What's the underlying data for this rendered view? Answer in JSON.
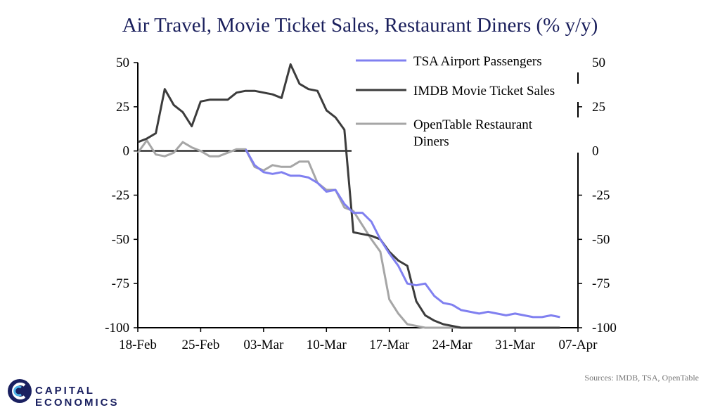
{
  "header": {
    "title": "Air Travel, Movie Ticket Sales, Restaurant Diners (% y/y)"
  },
  "footer": {
    "source": "Sources: IMDB, TSA, OpenTable",
    "brand": "CAPITAL ECONOMICS"
  },
  "colors": {
    "tsa": "#8080f0",
    "imdb": "#3c3c3c",
    "opentable": "#a6a6a6",
    "title": "#1a1f5c"
  },
  "chart_data": {
    "type": "line",
    "title": "Air Travel, Movie Ticket Sales, Restaurant Diners (% y/y)",
    "xlabel": "",
    "ylabel": "",
    "ylim": [
      -100,
      50
    ],
    "xlim_days": [
      0,
      48
    ],
    "yticks": [
      50,
      25,
      0,
      -25,
      -50,
      -75,
      -100
    ],
    "left_tick_labels": [
      "50",
      "25",
      "0",
      "-25",
      "-50",
      "-75",
      "-100"
    ],
    "right_tick_labels": [
      "50",
      "25",
      "0",
      "-25",
      "-50",
      "-75",
      "-100"
    ],
    "x_ticks": [
      {
        "day": 0,
        "label": "18-Feb"
      },
      {
        "day": 7,
        "label": "25-Feb"
      },
      {
        "day": 14,
        "label": "03-Mar"
      },
      {
        "day": 21,
        "label": "10-Mar"
      },
      {
        "day": 28,
        "label": "17-Mar"
      },
      {
        "day": 35,
        "label": "24-Mar"
      },
      {
        "day": 42,
        "label": "31-Mar"
      },
      {
        "day": 49,
        "label": "07-Apr"
      }
    ],
    "series": [
      {
        "name": "TSA Airport Passengers",
        "legend_lines": [
          "TSA Airport Passengers"
        ],
        "color_key": "tsa",
        "x": [
          12,
          13,
          14,
          15,
          16,
          17,
          18,
          19,
          20,
          21,
          22,
          23,
          24,
          25,
          26,
          27,
          28,
          29,
          30,
          31,
          32,
          33,
          34,
          35,
          36,
          37,
          38,
          39,
          40,
          41,
          42,
          43,
          44,
          45,
          46,
          47
        ],
        "values": [
          1,
          -8,
          -12,
          -13,
          -12,
          -14,
          -14,
          -15,
          -18,
          -23,
          -22,
          -30,
          -35,
          -35,
          -40,
          -50,
          -58,
          -65,
          -75,
          -76,
          -75,
          -82,
          -86,
          -87,
          -90,
          -91,
          -92,
          -91,
          -92,
          -93,
          -92,
          -93,
          -94,
          -94,
          -93,
          -94
        ]
      },
      {
        "name": "IMDB Movie Ticket Sales",
        "legend_lines": [
          "IMDB Movie Ticket Sales"
        ],
        "color_key": "imdb",
        "x": [
          0,
          1,
          2,
          3,
          4,
          5,
          6,
          7,
          8,
          9,
          10,
          11,
          12,
          13,
          14,
          15,
          16,
          17,
          18,
          19,
          20,
          21,
          22,
          23,
          24,
          25,
          26,
          27,
          28,
          29,
          30,
          31,
          32,
          33,
          34,
          35,
          36,
          37,
          38,
          39,
          40,
          41,
          42,
          43,
          44,
          45,
          46,
          47
        ],
        "values": [
          5,
          7,
          10,
          35,
          26,
          22,
          14,
          28,
          29,
          29,
          29,
          33,
          34,
          34,
          33,
          32,
          30,
          49,
          38,
          35,
          34,
          23,
          19,
          12,
          -46,
          -47,
          -48,
          -50,
          -57,
          -62,
          -65,
          -85,
          -93,
          -96,
          -98,
          -99,
          -100,
          -100,
          -100,
          -100,
          -100,
          -100,
          -100,
          -100,
          -100,
          -100,
          -100,
          -100
        ]
      },
      {
        "name": "OpenTable Restaurant Diners",
        "legend_lines": [
          "OpenTable Restaurant",
          "Diners"
        ],
        "color_key": "opentable",
        "x": [
          0,
          1,
          2,
          3,
          4,
          5,
          6,
          7,
          8,
          9,
          10,
          11,
          12,
          13,
          14,
          15,
          16,
          17,
          18,
          19,
          20,
          21,
          22,
          23,
          24,
          25,
          26,
          27,
          28,
          29,
          30,
          31,
          32,
          33,
          34,
          35,
          36,
          37,
          38,
          39,
          40,
          41,
          42,
          43,
          44,
          45,
          46,
          47
        ],
        "values": [
          -1,
          6,
          -2,
          -3,
          -1,
          5,
          2,
          0,
          -3,
          -3,
          -1,
          1,
          1,
          -9,
          -11,
          -8,
          -9,
          -9,
          -6,
          -6,
          -18,
          -22,
          -22,
          -32,
          -34,
          -42,
          -50,
          -57,
          -84,
          -92,
          -98,
          -99,
          -100,
          -100,
          -100,
          -100,
          -100,
          -100,
          -100,
          -100,
          -100,
          -100,
          -100,
          -100,
          -100,
          -100,
          -100,
          -100
        ]
      }
    ]
  }
}
